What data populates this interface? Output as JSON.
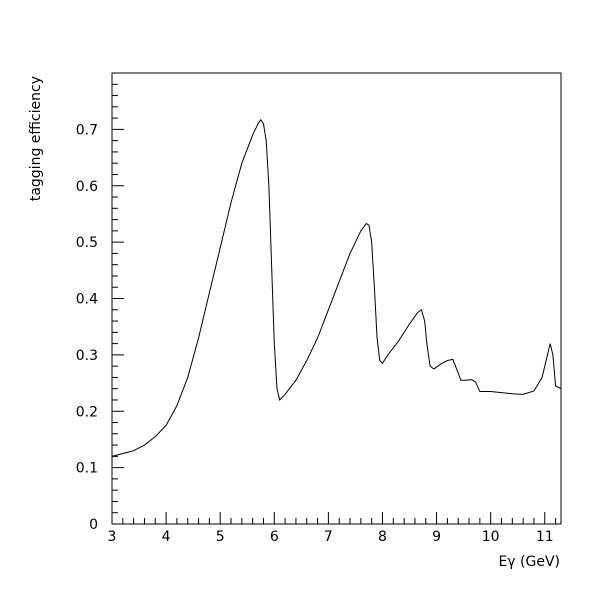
{
  "chart_data": {
    "type": "line",
    "title": "",
    "xlabel": "Eγ (GeV)",
    "ylabel": "tagging efficiency",
    "xlim": [
      3,
      11.3
    ],
    "ylim": [
      0,
      0.8
    ],
    "x_ticks": [
      "3",
      "4",
      "5",
      "6",
      "7",
      "8",
      "9",
      "10",
      "11"
    ],
    "y_ticks": [
      "0",
      "0.1",
      "0.2",
      "0.3",
      "0.4",
      "0.5",
      "0.6",
      "0.7"
    ],
    "grid": false,
    "legend": "none",
    "series": [
      {
        "line_color": "#000000",
        "x": [
          3.0,
          3.2,
          3.4,
          3.6,
          3.8,
          4.0,
          4.2,
          4.4,
          4.6,
          4.8,
          5.0,
          5.2,
          5.4,
          5.6,
          5.7,
          5.75,
          5.8,
          5.85,
          5.9,
          5.95,
          6.0,
          6.05,
          6.1,
          6.2,
          6.4,
          6.6,
          6.8,
          7.0,
          7.2,
          7.4,
          7.6,
          7.7,
          7.75,
          7.8,
          7.85,
          7.9,
          7.95,
          8.0,
          8.1,
          8.3,
          8.5,
          8.65,
          8.72,
          8.78,
          8.82,
          8.88,
          8.95,
          9.1,
          9.2,
          9.3,
          9.35,
          9.45,
          9.55,
          9.65,
          9.72,
          9.8,
          10.0,
          10.2,
          10.4,
          10.6,
          10.8,
          10.95,
          11.05,
          11.1,
          11.15,
          11.2,
          11.3
        ],
        "y": [
          0.12,
          0.125,
          0.13,
          0.14,
          0.155,
          0.175,
          0.21,
          0.26,
          0.33,
          0.41,
          0.49,
          0.57,
          0.64,
          0.69,
          0.71,
          0.717,
          0.71,
          0.68,
          0.6,
          0.46,
          0.32,
          0.24,
          0.22,
          0.23,
          0.255,
          0.29,
          0.33,
          0.38,
          0.43,
          0.48,
          0.52,
          0.533,
          0.53,
          0.5,
          0.42,
          0.33,
          0.29,
          0.285,
          0.3,
          0.325,
          0.355,
          0.375,
          0.38,
          0.36,
          0.32,
          0.28,
          0.275,
          0.285,
          0.29,
          0.292,
          0.28,
          0.255,
          0.255,
          0.256,
          0.252,
          0.235,
          0.235,
          0.233,
          0.231,
          0.23,
          0.236,
          0.26,
          0.3,
          0.32,
          0.3,
          0.245,
          0.24
        ]
      }
    ]
  }
}
